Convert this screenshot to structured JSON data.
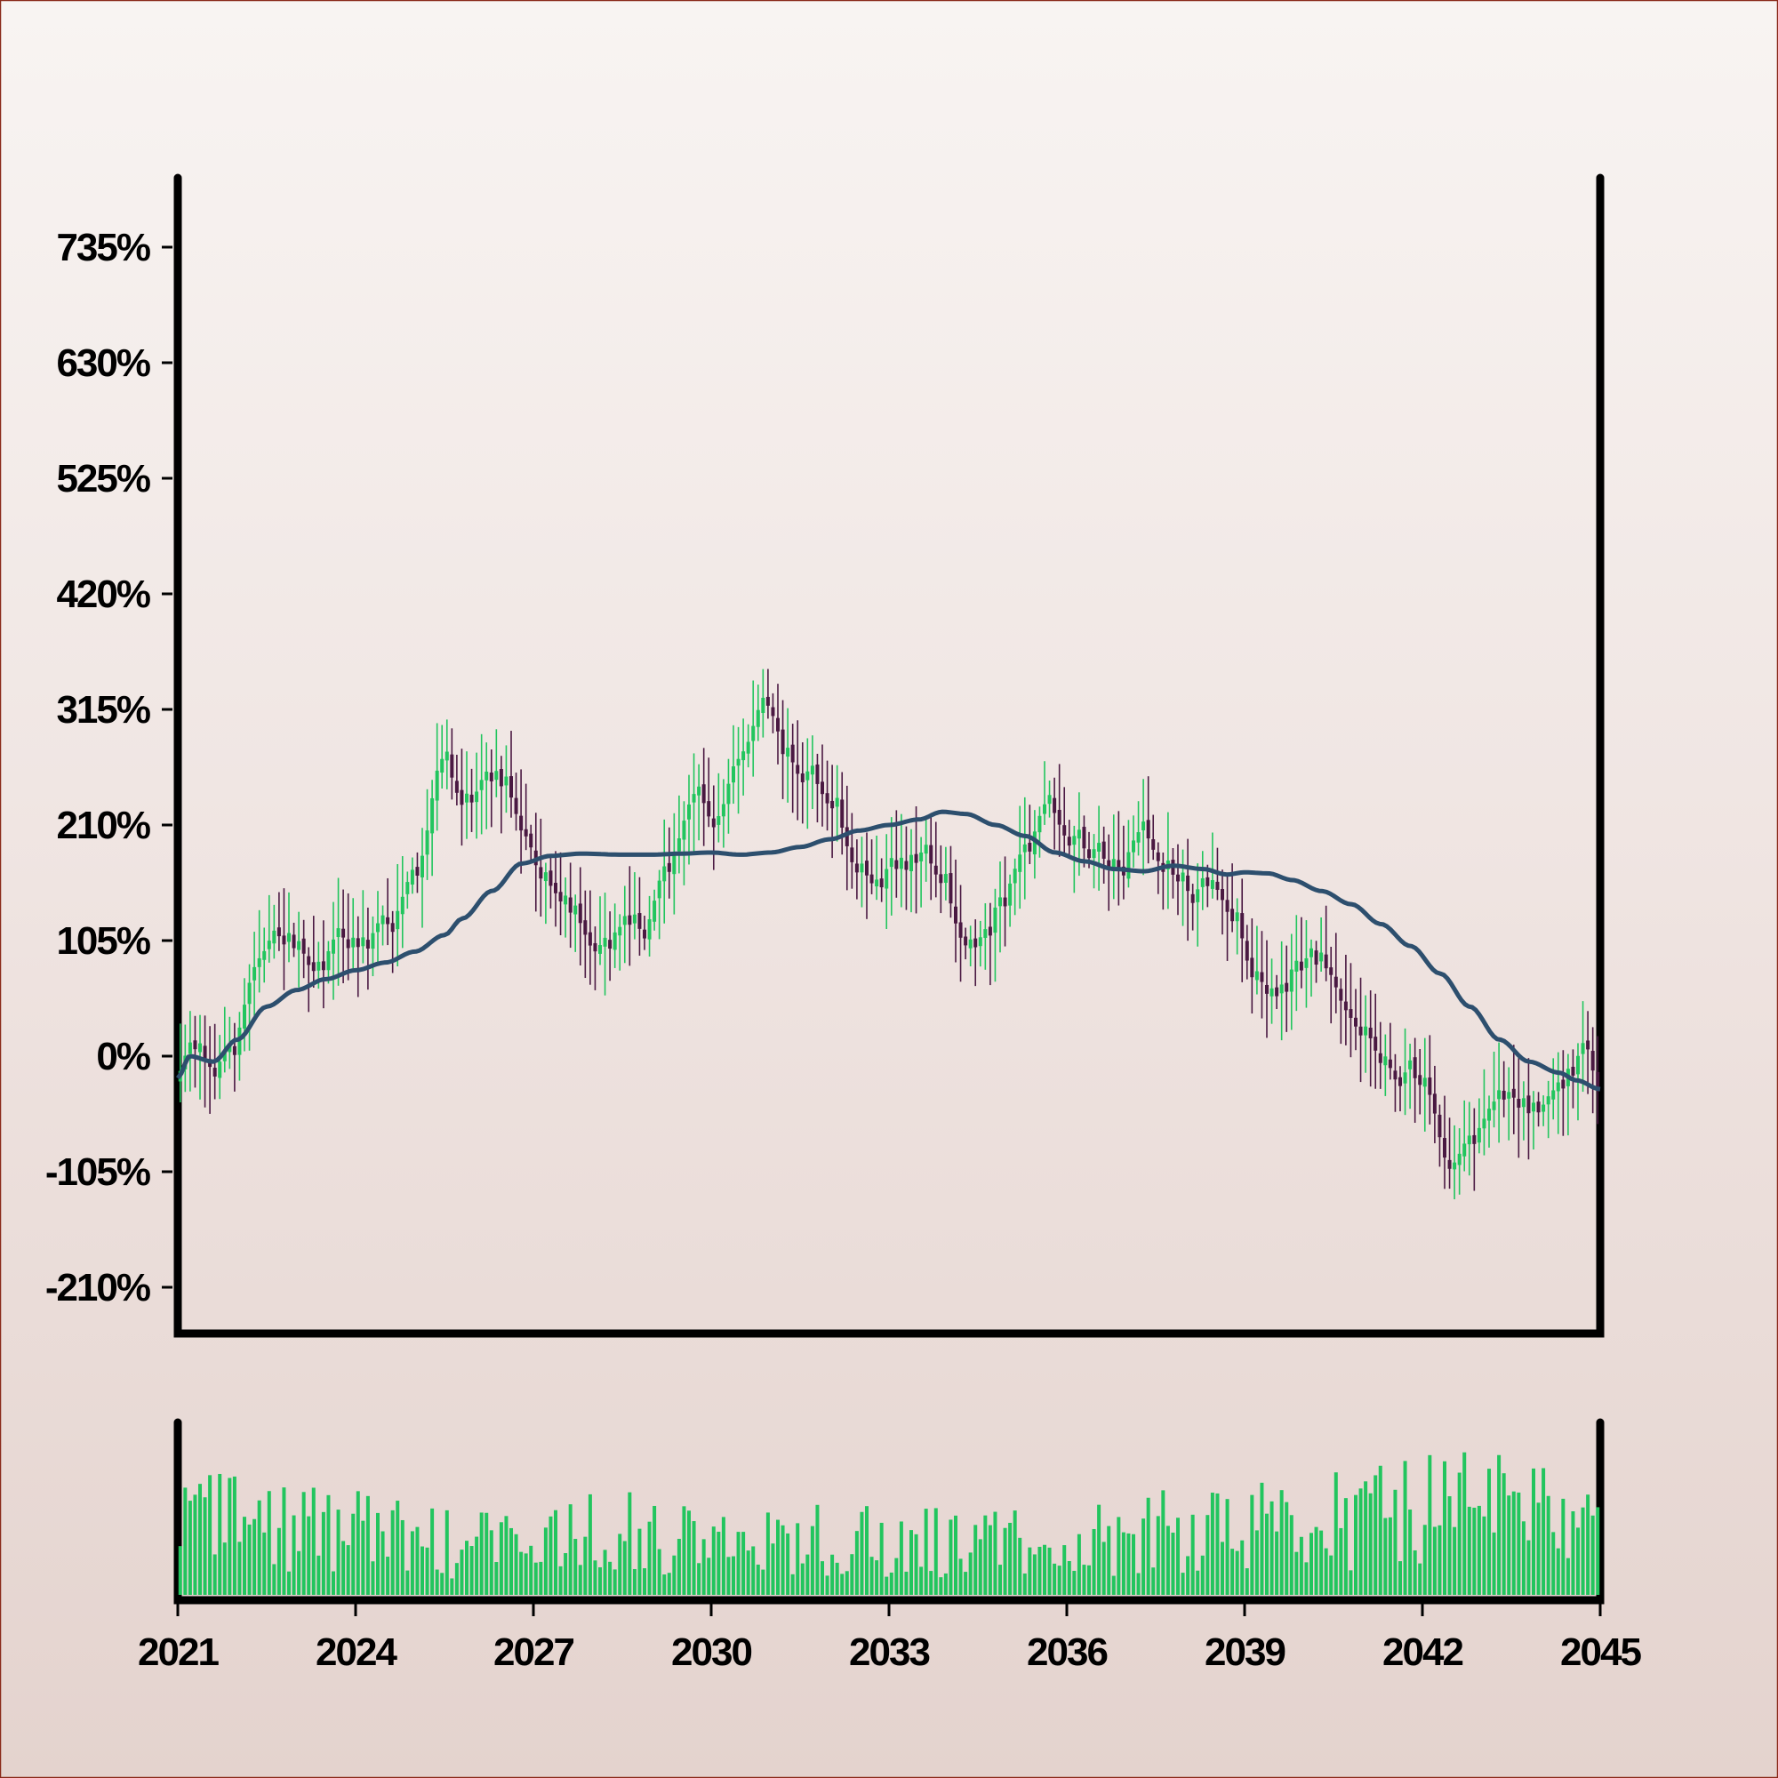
{
  "chart_data": {
    "type": "candlestick",
    "x_start": 2021,
    "x_end": 2045,
    "x_ticks": [
      "2021",
      "2024",
      "2027",
      "2030",
      "2033",
      "2036",
      "2039",
      "2042",
      "2045"
    ],
    "y_ticks": [
      "735%",
      "630%",
      "525%",
      "420%",
      "315%",
      "210%",
      "105%",
      "0%",
      "-105%",
      "-210%"
    ],
    "y_tick_values": [
      735,
      630,
      525,
      420,
      315,
      210,
      105,
      0,
      -105,
      -210
    ],
    "ylim": [
      -250,
      800
    ],
    "colors": {
      "up": "#22c55e",
      "down": "#4a1942",
      "moving_average": "#2d4f6e",
      "volume": "#22c55e",
      "frame": "#000000",
      "border": "#8a2a1a"
    },
    "close_anchors": [
      [
        2021.0,
        -20
      ],
      [
        2021.3,
        15
      ],
      [
        2021.6,
        -10
      ],
      [
        2021.9,
        0
      ],
      [
        2022.4,
        85
      ],
      [
        2022.7,
        115
      ],
      [
        2023.1,
        95
      ],
      [
        2023.4,
        80
      ],
      [
        2023.8,
        115
      ],
      [
        2024.1,
        105
      ],
      [
        2024.6,
        120
      ],
      [
        2025.1,
        175
      ],
      [
        2025.5,
        270
      ],
      [
        2025.9,
        225
      ],
      [
        2026.3,
        260
      ],
      [
        2026.6,
        240
      ],
      [
        2026.9,
        200
      ],
      [
        2027.2,
        160
      ],
      [
        2027.7,
        130
      ],
      [
        2028.1,
        95
      ],
      [
        2028.6,
        120
      ],
      [
        2028.9,
        115
      ],
      [
        2029.3,
        175
      ],
      [
        2029.8,
        240
      ],
      [
        2030.1,
        210
      ],
      [
        2030.5,
        270
      ],
      [
        2031.0,
        330
      ],
      [
        2031.3,
        270
      ],
      [
        2031.7,
        255
      ],
      [
        2032.1,
        225
      ],
      [
        2032.5,
        170
      ],
      [
        2032.8,
        160
      ],
      [
        2033.2,
        180
      ],
      [
        2033.6,
        185
      ],
      [
        2033.9,
        165
      ],
      [
        2034.3,
        105
      ],
      [
        2034.6,
        100
      ],
      [
        2034.9,
        140
      ],
      [
        2035.4,
        195
      ],
      [
        2035.7,
        230
      ],
      [
        2036.1,
        195
      ],
      [
        2036.5,
        185
      ],
      [
        2036.9,
        170
      ],
      [
        2037.3,
        205
      ],
      [
        2037.7,
        170
      ],
      [
        2038.1,
        150
      ],
      [
        2038.5,
        155
      ],
      [
        2038.9,
        120
      ],
      [
        2039.2,
        70
      ],
      [
        2039.6,
        60
      ],
      [
        2040.0,
        90
      ],
      [
        2040.4,
        80
      ],
      [
        2040.8,
        40
      ],
      [
        2041.1,
        20
      ],
      [
        2041.4,
        -10
      ],
      [
        2041.8,
        -15
      ],
      [
        2042.1,
        -30
      ],
      [
        2042.5,
        -100
      ],
      [
        2042.9,
        -70
      ],
      [
        2043.3,
        -40
      ],
      [
        2043.6,
        -30
      ],
      [
        2043.9,
        -55
      ],
      [
        2044.3,
        -30
      ],
      [
        2044.6,
        -5
      ],
      [
        2044.8,
        15
      ],
      [
        2045.0,
        -30
      ]
    ],
    "ma_anchors": [
      [
        2021.0,
        -20
      ],
      [
        2021.2,
        0
      ],
      [
        2021.6,
        -5
      ],
      [
        2022.0,
        15
      ],
      [
        2022.5,
        45
      ],
      [
        2023.0,
        60
      ],
      [
        2023.5,
        70
      ],
      [
        2024.0,
        78
      ],
      [
        2024.5,
        85
      ],
      [
        2025.0,
        95
      ],
      [
        2025.5,
        110
      ],
      [
        2025.8,
        125
      ],
      [
        2026.3,
        150
      ],
      [
        2026.8,
        175
      ],
      [
        2027.3,
        182
      ],
      [
        2027.8,
        184
      ],
      [
        2028.5,
        183
      ],
      [
        2029.0,
        183
      ],
      [
        2029.5,
        184
      ],
      [
        2030.0,
        185
      ],
      [
        2030.5,
        183
      ],
      [
        2031.0,
        185
      ],
      [
        2031.5,
        190
      ],
      [
        2032.0,
        197
      ],
      [
        2032.5,
        205
      ],
      [
        2033.0,
        210
      ],
      [
        2033.5,
        215
      ],
      [
        2033.9,
        222
      ],
      [
        2034.3,
        220
      ],
      [
        2034.8,
        210
      ],
      [
        2035.3,
        200
      ],
      [
        2035.8,
        185
      ],
      [
        2036.3,
        177
      ],
      [
        2036.8,
        170
      ],
      [
        2037.3,
        168
      ],
      [
        2037.8,
        173
      ],
      [
        2038.3,
        170
      ],
      [
        2038.7,
        165
      ],
      [
        2039.0,
        167
      ],
      [
        2039.4,
        166
      ],
      [
        2039.8,
        160
      ],
      [
        2040.3,
        150
      ],
      [
        2040.8,
        138
      ],
      [
        2041.3,
        120
      ],
      [
        2041.8,
        100
      ],
      [
        2042.3,
        75
      ],
      [
        2042.8,
        45
      ],
      [
        2043.3,
        15
      ],
      [
        2043.8,
        -5
      ],
      [
        2044.3,
        -15
      ],
      [
        2044.6,
        -22
      ],
      [
        2045.0,
        -30
      ]
    ],
    "volume_seed": 7,
    "candles_per_year": 12,
    "volume_level_anchors": [
      [
        2021,
        0.62
      ],
      [
        2022,
        0.58
      ],
      [
        2024,
        0.48
      ],
      [
        2026,
        0.38
      ],
      [
        2028,
        0.5
      ],
      [
        2030,
        0.45
      ],
      [
        2032,
        0.42
      ],
      [
        2034,
        0.4
      ],
      [
        2036,
        0.42
      ],
      [
        2038,
        0.5
      ],
      [
        2040,
        0.55
      ],
      [
        2042,
        0.65
      ],
      [
        2043,
        0.72
      ],
      [
        2045,
        0.6
      ]
    ]
  }
}
